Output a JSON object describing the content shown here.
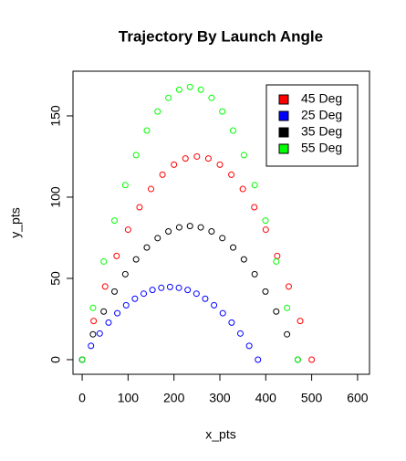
{
  "chart_data": {
    "type": "scatter",
    "title": "Trajectory By Launch Angle",
    "x_label": "x_pts",
    "y_label": "y_pts",
    "xlim": [
      -20,
      626
    ],
    "ylim": [
      -9,
      177.5
    ],
    "xticks": [
      0,
      100,
      200,
      300,
      400,
      500,
      600
    ],
    "yticks": [
      0,
      50,
      100,
      150
    ],
    "legend": "topright",
    "series": [
      {
        "name": "45 Deg",
        "color": "#ff0000",
        "x": [
          0,
          25,
          50,
          75,
          100,
          125,
          150,
          175,
          200,
          225,
          250,
          275,
          300,
          325,
          350,
          375,
          400,
          425,
          450,
          475,
          500
        ],
        "values": [
          0,
          23.8,
          45,
          63.8,
          80,
          93.8,
          105,
          113.8,
          120,
          123.8,
          125,
          123.8,
          120,
          113.8,
          105,
          93.8,
          80,
          63.8,
          45,
          23.8,
          0
        ]
      },
      {
        "name": "25 Deg",
        "color": "#0000ff",
        "x": [
          0,
          19.2,
          38.3,
          57.5,
          76.6,
          95.8,
          114.9,
          134.1,
          153.2,
          172.4,
          191.5,
          210.7,
          229.8,
          249,
          268.1,
          287.3,
          306.4,
          325.6,
          344.7,
          363.9,
          383
        ],
        "values": [
          0,
          8.5,
          16.1,
          22.8,
          28.6,
          33.5,
          37.5,
          40.6,
          42.9,
          44.2,
          44.7,
          44.2,
          42.9,
          40.6,
          37.5,
          33.5,
          28.6,
          22.8,
          16.1,
          8.5,
          0
        ]
      },
      {
        "name": "35 Deg",
        "color": "#000000",
        "x": [
          0,
          23.5,
          47,
          70.5,
          94,
          117.5,
          140.9,
          164.4,
          187.9,
          211.4,
          234.9,
          258.4,
          281.9,
          305.4,
          328.9,
          352.4,
          375.8,
          399.3,
          422.8,
          446.3,
          469.8
        ],
        "values": [
          0,
          15.6,
          29.6,
          41.9,
          52.6,
          61.7,
          69,
          74.8,
          78.9,
          81.4,
          82.2,
          81.4,
          78.9,
          74.8,
          69,
          61.7,
          52.6,
          41.9,
          29.6,
          15.6,
          0
        ]
      },
      {
        "name": "55 Deg",
        "color": "#00ff00",
        "x": [
          0,
          23.5,
          47,
          70.5,
          94,
          117.5,
          140.9,
          164.4,
          187.9,
          211.4,
          234.9,
          258.4,
          281.9,
          305.4,
          328.9,
          352.4,
          375.8,
          399.3,
          422.8,
          446.3,
          469.8
        ],
        "values": [
          0,
          31.9,
          60.4,
          85.6,
          107.4,
          125.9,
          141,
          152.7,
          161.1,
          166.1,
          167.8,
          166.1,
          161.1,
          152.7,
          141,
          125.9,
          107.4,
          85.6,
          60.4,
          31.9,
          0
        ]
      }
    ]
  }
}
